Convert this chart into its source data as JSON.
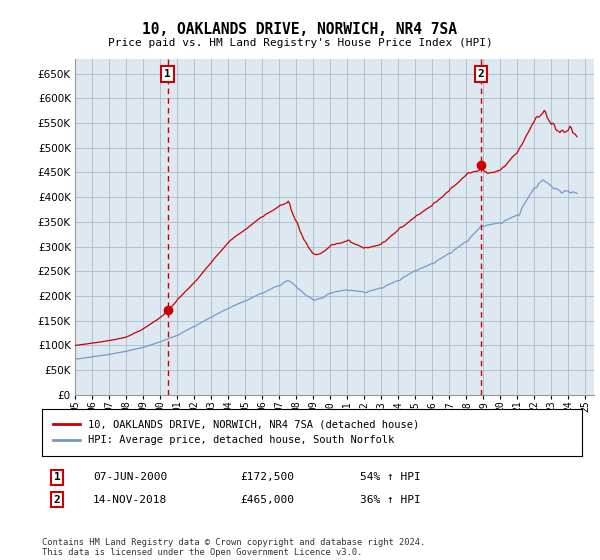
{
  "title": "10, OAKLANDS DRIVE, NORWICH, NR4 7SA",
  "subtitle": "Price paid vs. HM Land Registry's House Price Index (HPI)",
  "red_label": "10, OAKLANDS DRIVE, NORWICH, NR4 7SA (detached house)",
  "blue_label": "HPI: Average price, detached house, South Norfolk",
  "annotation1": {
    "num": "1",
    "date": "07-JUN-2000",
    "price": "£172,500",
    "hpi": "54% ↑ HPI",
    "x_year": 2000.44,
    "y_val": 172500
  },
  "annotation2": {
    "num": "2",
    "date": "14-NOV-2018",
    "price": "£465,000",
    "hpi": "36% ↑ HPI",
    "x_year": 2018.87,
    "y_val": 465000
  },
  "footer": "Contains HM Land Registry data © Crown copyright and database right 2024.\nThis data is licensed under the Open Government Licence v3.0.",
  "ylim": [
    0,
    680000
  ],
  "xlim_start": 1995.0,
  "xlim_end": 2025.5,
  "ytick_step": 50000,
  "background_color": "#ffffff",
  "chart_bg": "#dde8f0",
  "grid_color": "#aabbcc",
  "red_color": "#cc0000",
  "blue_color": "#7799cc",
  "red_key_years": [
    1995.0,
    1996.0,
    1997.0,
    1998.0,
    1999.0,
    2000.0,
    2000.44,
    2001.0,
    2002.0,
    2003.0,
    2004.0,
    2005.0,
    2006.0,
    2007.0,
    2007.5,
    2008.0,
    2008.5,
    2009.0,
    2009.5,
    2010.0,
    2011.0,
    2012.0,
    2013.0,
    2014.0,
    2015.0,
    2016.0,
    2017.0,
    2018.0,
    2018.87,
    2019.0,
    2020.0,
    2021.0,
    2022.0,
    2022.5,
    2023.0,
    2023.5,
    2024.0,
    2024.5
  ],
  "red_key_vals": [
    100000,
    105000,
    110000,
    118000,
    135000,
    158000,
    172500,
    195000,
    230000,
    270000,
    310000,
    335000,
    360000,
    385000,
    395000,
    350000,
    310000,
    285000,
    290000,
    305000,
    315000,
    300000,
    310000,
    340000,
    365000,
    390000,
    420000,
    450000,
    465000,
    455000,
    460000,
    500000,
    565000,
    580000,
    555000,
    540000,
    550000,
    530000
  ],
  "blue_key_years": [
    1995.0,
    1996.0,
    1997.0,
    1998.0,
    1999.0,
    2000.0,
    2001.0,
    2002.0,
    2003.0,
    2004.0,
    2005.0,
    2006.0,
    2007.0,
    2007.5,
    2008.0,
    2008.5,
    2009.0,
    2009.5,
    2010.0,
    2011.0,
    2012.0,
    2013.0,
    2014.0,
    2015.0,
    2016.0,
    2017.0,
    2018.0,
    2018.87,
    2019.0,
    2020.0,
    2021.0,
    2022.0,
    2022.5,
    2023.0,
    2023.5,
    2024.0,
    2024.5
  ],
  "blue_key_vals": [
    72000,
    77000,
    82000,
    88000,
    96000,
    107000,
    120000,
    138000,
    157000,
    175000,
    190000,
    205000,
    220000,
    230000,
    215000,
    200000,
    190000,
    195000,
    205000,
    210000,
    205000,
    215000,
    230000,
    250000,
    265000,
    285000,
    310000,
    340000,
    340000,
    345000,
    360000,
    415000,
    430000,
    415000,
    405000,
    405000,
    400000
  ]
}
